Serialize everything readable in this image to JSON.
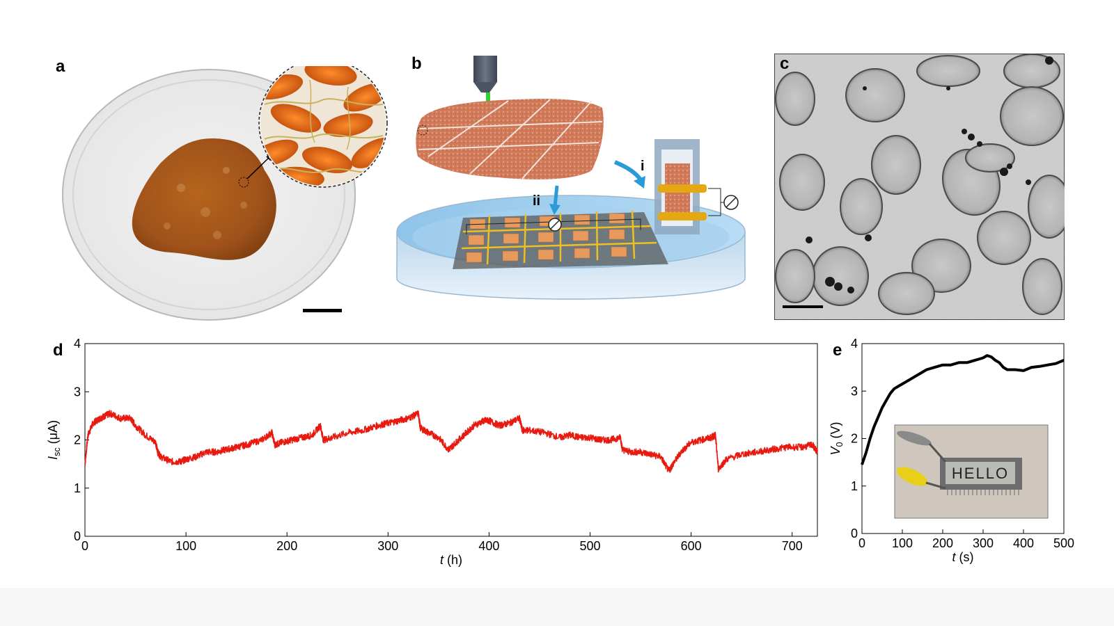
{
  "panels": {
    "a": {
      "letter": "a"
    },
    "b": {
      "letter": "b",
      "label_i": "i",
      "label_ii": "ii"
    },
    "c": {
      "letter": "c"
    },
    "d": {
      "letter": "d"
    },
    "e": {
      "letter": "e",
      "inset_display_text": "HELLO"
    }
  },
  "chart_data": [
    {
      "type": "line",
      "panel": "d",
      "xlabel_var": "t",
      "xlabel_unit": "(h)",
      "ylabel_var": "I",
      "ylabel_sub": "sc",
      "ylabel_unit": "(μA)",
      "xlim": [
        0,
        725
      ],
      "ylim": [
        0,
        4
      ],
      "xticks": [
        0,
        100,
        200,
        300,
        400,
        500,
        600,
        700
      ],
      "yticks": [
        0,
        1,
        2,
        3,
        4
      ],
      "color": "#e8190f",
      "series": [
        {
          "x": [
            0,
            3,
            8,
            15,
            20,
            25,
            35,
            45,
            50,
            60,
            70,
            72,
            75,
            85,
            95,
            100,
            110,
            120,
            130,
            140,
            150,
            160,
            175,
            185,
            188,
            195,
            205,
            215,
            225,
            233,
            236,
            245,
            260,
            275,
            290,
            300,
            310,
            320,
            330,
            332,
            340,
            350,
            360,
            365,
            375,
            385,
            395,
            400,
            410,
            420,
            430,
            433,
            440,
            455,
            470,
            480,
            490,
            500,
            510,
            520,
            530,
            532,
            540,
            550,
            560,
            570,
            578,
            582,
            590,
            600,
            610,
            620,
            624,
            627,
            635,
            650,
            665,
            680,
            695,
            710,
            720,
            725
          ],
          "y": [
            1.5,
            2.1,
            2.35,
            2.45,
            2.5,
            2.55,
            2.45,
            2.45,
            2.3,
            2.1,
            1.95,
            1.75,
            1.65,
            1.55,
            1.55,
            1.6,
            1.65,
            1.75,
            1.75,
            1.8,
            1.85,
            1.9,
            2.0,
            2.15,
            1.9,
            1.95,
            2.0,
            2.05,
            2.1,
            2.3,
            2.0,
            2.05,
            2.15,
            2.2,
            2.3,
            2.35,
            2.4,
            2.45,
            2.55,
            2.25,
            2.15,
            2.05,
            1.8,
            1.9,
            2.1,
            2.3,
            2.4,
            2.4,
            2.3,
            2.35,
            2.45,
            2.2,
            2.2,
            2.15,
            2.05,
            2.1,
            2.05,
            2.05,
            2.0,
            2.0,
            2.05,
            1.8,
            1.75,
            1.75,
            1.7,
            1.65,
            1.35,
            1.5,
            1.75,
            1.95,
            2.0,
            2.05,
            2.1,
            1.4,
            1.6,
            1.7,
            1.75,
            1.8,
            1.85,
            1.85,
            1.9,
            1.75
          ]
        }
      ]
    },
    {
      "type": "line",
      "panel": "e",
      "xlabel_var": "t",
      "xlabel_unit": "(s)",
      "ylabel_var": "V",
      "ylabel_sub": "0",
      "ylabel_unit": "(V)",
      "xlim": [
        0,
        500
      ],
      "ylim": [
        0,
        4
      ],
      "xticks": [
        0,
        100,
        200,
        300,
        400,
        500
      ],
      "yticks": [
        0,
        1,
        2,
        3,
        4
      ],
      "color": "#000000",
      "series": [
        {
          "x": [
            0,
            10,
            20,
            30,
            40,
            50,
            60,
            70,
            80,
            90,
            100,
            120,
            140,
            160,
            180,
            200,
            220,
            240,
            260,
            280,
            300,
            310,
            320,
            330,
            340,
            350,
            360,
            380,
            400,
            420,
            440,
            460,
            480,
            500
          ],
          "y": [
            1.45,
            1.7,
            2.0,
            2.25,
            2.45,
            2.65,
            2.8,
            2.95,
            3.05,
            3.1,
            3.15,
            3.25,
            3.35,
            3.45,
            3.5,
            3.55,
            3.55,
            3.6,
            3.6,
            3.65,
            3.7,
            3.75,
            3.72,
            3.65,
            3.6,
            3.5,
            3.45,
            3.45,
            3.43,
            3.5,
            3.52,
            3.55,
            3.58,
            3.65
          ]
        }
      ]
    }
  ]
}
